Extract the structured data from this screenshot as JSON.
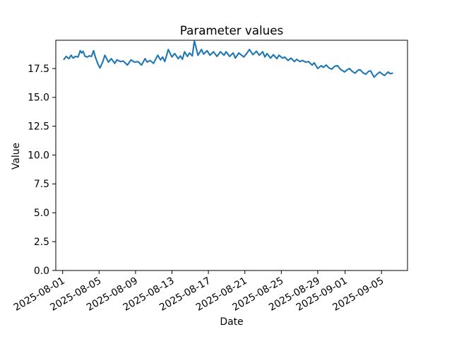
{
  "chart_data": {
    "type": "line",
    "title": "Parameter values",
    "xlabel": "Date",
    "ylabel": "Value",
    "line_color": "#1f77b4",
    "grid": false,
    "legend": "none",
    "x_unit": "days since 2025-08-01",
    "xlim": [
      -0.75,
      37.85
    ],
    "ylim": [
      0,
      19.95
    ],
    "x_ticks": [
      {
        "pos": 0,
        "label": "2025-08-01"
      },
      {
        "pos": 4,
        "label": "2025-08-05"
      },
      {
        "pos": 8,
        "label": "2025-08-09"
      },
      {
        "pos": 12,
        "label": "2025-08-13"
      },
      {
        "pos": 16,
        "label": "2025-08-17"
      },
      {
        "pos": 20,
        "label": "2025-08-21"
      },
      {
        "pos": 24,
        "label": "2025-08-25"
      },
      {
        "pos": 28,
        "label": "2025-08-29"
      },
      {
        "pos": 31,
        "label": "2025-09-01"
      },
      {
        "pos": 35,
        "label": "2025-09-05"
      }
    ],
    "y_ticks": [
      {
        "pos": 0,
        "label": "0.0"
      },
      {
        "pos": 2.5,
        "label": "2.5"
      },
      {
        "pos": 5,
        "label": "5.0"
      },
      {
        "pos": 7.5,
        "label": "7.5"
      },
      {
        "pos": 10,
        "label": "10.0"
      },
      {
        "pos": 12.5,
        "label": "12.5"
      },
      {
        "pos": 15,
        "label": "15.0"
      },
      {
        "pos": 17.5,
        "label": "17.5"
      }
    ],
    "series": [
      {
        "x": [
          0.15,
          0.39,
          0.7,
          0.93,
          1.16,
          1.39,
          1.7,
          1.93,
          2.09,
          2.24,
          2.47,
          2.71,
          2.94,
          3.17,
          3.4,
          3.63,
          3.87,
          4.1,
          4.41,
          4.64,
          5.03,
          5.34,
          5.72,
          5.96,
          6.34,
          6.65,
          7.11,
          7.5,
          7.89,
          8.27,
          8.66,
          9.05,
          9.28,
          9.59,
          9.98,
          10.44,
          10.75,
          10.98,
          11.21,
          11.6,
          11.99,
          12.3,
          12.68,
          12.92,
          13.15,
          13.38,
          13.69,
          13.92,
          14.23,
          14.46,
          14.85,
          15.24,
          15.47,
          15.85,
          16.16,
          16.55,
          16.94,
          17.32,
          17.71,
          17.94,
          18.33,
          18.72,
          18.95,
          19.33,
          19.57,
          19.88,
          20.19,
          20.5,
          20.88,
          21.27,
          21.58,
          21.96,
          22.2,
          22.43,
          22.82,
          23.13,
          23.51,
          23.74,
          24.13,
          24.36,
          24.75,
          25.06,
          25.44,
          25.68,
          26.06,
          26.3,
          26.68,
          26.99,
          27.38,
          27.61,
          28.0,
          28.38,
          28.62,
          28.93,
          29.23,
          29.54,
          29.85,
          30.16,
          30.47,
          30.93,
          31.24,
          31.48,
          31.79,
          32.1,
          32.41,
          32.64,
          32.95,
          33.26,
          33.57,
          33.8,
          34.18,
          34.49,
          34.8,
          35.11,
          35.34,
          35.58,
          35.73,
          35.96,
          36.2
        ],
        "y": [
          18.3,
          18.55,
          18.35,
          18.65,
          18.4,
          18.55,
          18.5,
          19.05,
          18.85,
          19.0,
          18.55,
          18.5,
          18.6,
          18.55,
          19.05,
          18.4,
          17.9,
          17.55,
          18.1,
          18.65,
          18.05,
          18.35,
          17.95,
          18.25,
          18.1,
          18.15,
          17.8,
          18.25,
          18.05,
          18.1,
          17.8,
          18.35,
          18.05,
          18.2,
          17.95,
          18.65,
          18.25,
          18.5,
          18.1,
          19.15,
          18.5,
          18.8,
          18.35,
          18.6,
          18.3,
          18.95,
          18.55,
          18.85,
          18.6,
          19.9,
          18.65,
          19.15,
          18.75,
          19.05,
          18.65,
          18.95,
          18.55,
          18.95,
          18.65,
          18.95,
          18.55,
          18.85,
          18.4,
          18.85,
          18.7,
          18.5,
          18.8,
          19.15,
          18.7,
          19.0,
          18.65,
          18.95,
          18.5,
          18.8,
          18.4,
          18.7,
          18.35,
          18.65,
          18.4,
          18.5,
          18.2,
          18.4,
          18.1,
          18.3,
          18.1,
          18.2,
          18.05,
          18.1,
          17.8,
          18.0,
          17.5,
          17.75,
          17.6,
          17.8,
          17.55,
          17.45,
          17.7,
          17.75,
          17.45,
          17.2,
          17.4,
          17.5,
          17.25,
          17.1,
          17.35,
          17.4,
          17.15,
          17.0,
          17.25,
          17.3,
          16.75,
          17.0,
          17.2,
          17.0,
          16.9,
          17.1,
          17.2,
          17.05,
          17.1
        ]
      }
    ]
  }
}
